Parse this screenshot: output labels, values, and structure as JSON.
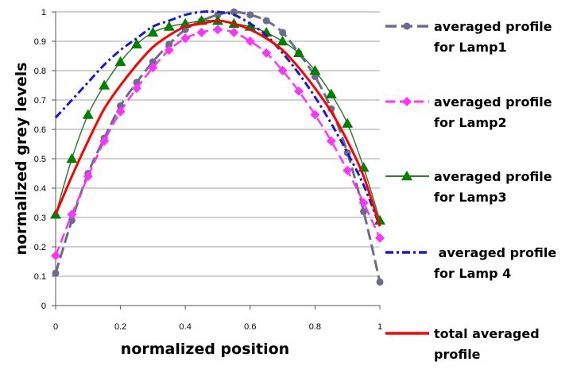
{
  "chart_data": {
    "type": "line",
    "xlabel": "normalized position",
    "ylabel": "normalized grey levels",
    "xlim": [
      0,
      1
    ],
    "ylim": [
      0,
      1
    ],
    "xticks": [
      "0",
      "0.2",
      "0.4",
      "0.6",
      "0.8",
      "1"
    ],
    "yticks": [
      "0",
      "0.1",
      "0.2",
      "0.3",
      "0.4",
      "0.5",
      "0.6",
      "0.7",
      "0.8",
      "0.9",
      "1"
    ],
    "grid": "horizontal",
    "legend_position": "right",
    "series": [
      {
        "name": "averaged profile for Lamp1",
        "legend_lines": [
          "averaged profile",
          "for Lamp1"
        ],
        "color": "#6b6b8e",
        "dash": "14,6",
        "marker": "circle",
        "x": [
          0,
          0.05,
          0.1,
          0.15,
          0.2,
          0.25,
          0.3,
          0.35,
          0.4,
          0.45,
          0.5,
          0.55,
          0.6,
          0.65,
          0.7,
          0.75,
          0.8,
          0.85,
          0.9,
          0.95,
          1.0
        ],
        "y": [
          0.11,
          0.29,
          0.45,
          0.57,
          0.68,
          0.76,
          0.83,
          0.89,
          0.94,
          0.97,
          0.99,
          1.0,
          0.99,
          0.97,
          0.93,
          0.86,
          0.78,
          0.67,
          0.52,
          0.32,
          0.08
        ]
      },
      {
        "name": "averaged profile for Lamp2",
        "legend_lines": [
          "averaged profile",
          "for Lamp2"
        ],
        "color": "#ff33ff",
        "dash": "12,6",
        "marker": "diamond",
        "x": [
          0,
          0.05,
          0.1,
          0.15,
          0.2,
          0.25,
          0.3,
          0.35,
          0.4,
          0.45,
          0.5,
          0.55,
          0.6,
          0.65,
          0.7,
          0.75,
          0.8,
          0.85,
          0.9,
          0.95,
          1.0
        ],
        "y": [
          0.17,
          0.31,
          0.44,
          0.56,
          0.66,
          0.74,
          0.81,
          0.87,
          0.91,
          0.93,
          0.94,
          0.93,
          0.9,
          0.86,
          0.8,
          0.73,
          0.65,
          0.56,
          0.46,
          0.35,
          0.23
        ]
      },
      {
        "name": "averaged profile for Lamp3",
        "legend_lines": [
          "averaged profile",
          "for Lamp3"
        ],
        "color": "#2e7d32",
        "marker_color": "#008000",
        "dash": "",
        "marker": "triangle",
        "x": [
          0,
          0.05,
          0.1,
          0.15,
          0.2,
          0.25,
          0.3,
          0.35,
          0.4,
          0.45,
          0.5,
          0.55,
          0.6,
          0.65,
          0.7,
          0.75,
          0.8,
          0.85,
          0.9,
          0.95,
          1.0
        ],
        "y": [
          0.31,
          0.5,
          0.65,
          0.75,
          0.83,
          0.89,
          0.93,
          0.95,
          0.96,
          0.97,
          0.97,
          0.96,
          0.95,
          0.93,
          0.9,
          0.86,
          0.8,
          0.72,
          0.62,
          0.47,
          0.29
        ]
      },
      {
        "name": "averaged profile for Lamp 4",
        "legend_lines": [
          " averaged profile",
          "for Lamp 4"
        ],
        "color": "#1a1acc",
        "dash": "10,4,3,4",
        "marker": "none",
        "x": [
          0,
          0.05,
          0.1,
          0.15,
          0.2,
          0.25,
          0.3,
          0.35,
          0.4,
          0.45,
          0.5,
          0.55,
          0.6,
          0.65,
          0.7,
          0.75,
          0.8,
          0.85,
          0.9,
          0.95,
          1.0
        ],
        "y": [
          0.64,
          0.7,
          0.76,
          0.82,
          0.87,
          0.91,
          0.95,
          0.97,
          0.99,
          1.0,
          1.0,
          0.99,
          0.96,
          0.92,
          0.86,
          0.79,
          0.71,
          0.62,
          0.52,
          0.41,
          0.27
        ]
      },
      {
        "name": "total averaged profile",
        "legend_lines": [
          "total averaged",
          "profile"
        ],
        "color": "#ff0000",
        "dash": "",
        "marker": "none",
        "x": [
          0,
          0.05,
          0.1,
          0.15,
          0.2,
          0.25,
          0.3,
          0.35,
          0.4,
          0.45,
          0.5,
          0.55,
          0.6,
          0.65,
          0.7,
          0.75,
          0.8,
          0.85,
          0.9,
          0.95,
          1.0
        ],
        "y": [
          0.31,
          0.44,
          0.56,
          0.67,
          0.75,
          0.82,
          0.88,
          0.92,
          0.95,
          0.96,
          0.97,
          0.96,
          0.94,
          0.91,
          0.87,
          0.81,
          0.74,
          0.66,
          0.56,
          0.44,
          0.27
        ]
      }
    ]
  }
}
